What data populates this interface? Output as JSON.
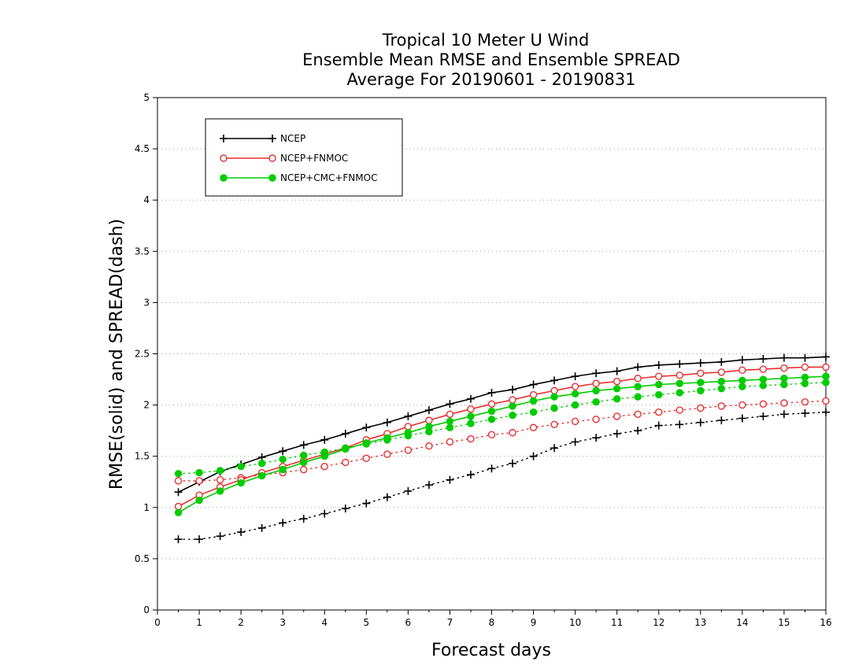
{
  "chart_data": {
    "type": "line",
    "title_lines": [
      "Tropical 10 Meter U Wind",
      "Ensemble Mean RMSE and Ensemble SPREAD",
      "Average For 20190601 - 20190831"
    ],
    "xlabel": "Forecast days",
    "ylabel": "RMSE(solid) and SPREAD(dash)",
    "xlim": [
      0,
      16
    ],
    "ylim": [
      0,
      5
    ],
    "xticks": [
      0,
      1,
      2,
      3,
      4,
      5,
      6,
      7,
      8,
      9,
      10,
      11,
      12,
      13,
      14,
      15,
      16
    ],
    "yticks": [
      0,
      0.5,
      1,
      1.5,
      2,
      2.5,
      3,
      3.5,
      4,
      4.5,
      5
    ],
    "grid": "horizontal-dotted",
    "legend_position": "top-left",
    "x": [
      0.5,
      1,
      1.5,
      2,
      2.5,
      3,
      3.5,
      4,
      4.5,
      5,
      5.5,
      6,
      6.5,
      7,
      7.5,
      8,
      8.5,
      9,
      9.5,
      10,
      10.5,
      11,
      11.5,
      12,
      12.5,
      13,
      13.5,
      14,
      14.5,
      15,
      15.5,
      16
    ],
    "series": [
      {
        "name": "NCEP",
        "color": "#000000",
        "marker": "plus",
        "rmse": [
          1.15,
          1.25,
          1.35,
          1.42,
          1.49,
          1.55,
          1.61,
          1.66,
          1.72,
          1.78,
          1.83,
          1.89,
          1.95,
          2.01,
          2.06,
          2.12,
          2.15,
          2.2,
          2.24,
          2.28,
          2.31,
          2.33,
          2.37,
          2.39,
          2.4,
          2.41,
          2.42,
          2.44,
          2.45,
          2.46,
          2.46,
          2.47
        ],
        "spread": [
          0.69,
          0.69,
          0.72,
          0.76,
          0.8,
          0.85,
          0.89,
          0.94,
          0.99,
          1.04,
          1.1,
          1.16,
          1.22,
          1.27,
          1.32,
          1.38,
          1.43,
          1.5,
          1.58,
          1.64,
          1.68,
          1.72,
          1.75,
          1.8,
          1.81,
          1.83,
          1.85,
          1.87,
          1.89,
          1.91,
          1.92,
          1.93
        ]
      },
      {
        "name": "NCEP+FNMOC",
        "color": "#e83030",
        "marker": "open-circle",
        "rmse": [
          1.01,
          1.12,
          1.2,
          1.27,
          1.34,
          1.4,
          1.46,
          1.52,
          1.58,
          1.66,
          1.72,
          1.79,
          1.85,
          1.91,
          1.96,
          2.01,
          2.05,
          2.1,
          2.14,
          2.18,
          2.21,
          2.23,
          2.26,
          2.28,
          2.29,
          2.31,
          2.32,
          2.34,
          2.35,
          2.36,
          2.37,
          2.37
        ],
        "spread": [
          1.26,
          1.26,
          1.27,
          1.29,
          1.32,
          1.34,
          1.37,
          1.4,
          1.44,
          1.48,
          1.52,
          1.56,
          1.6,
          1.64,
          1.67,
          1.71,
          1.73,
          1.78,
          1.81,
          1.84,
          1.86,
          1.89,
          1.91,
          1.93,
          1.95,
          1.97,
          1.99,
          2.0,
          2.01,
          2.02,
          2.03,
          2.04
        ]
      },
      {
        "name": "NCEP+CMC+FNMOC",
        "color": "#00cc00",
        "marker": "filled-circle",
        "rmse": [
          0.95,
          1.07,
          1.16,
          1.24,
          1.31,
          1.37,
          1.44,
          1.5,
          1.57,
          1.63,
          1.68,
          1.73,
          1.79,
          1.84,
          1.89,
          1.94,
          1.99,
          2.04,
          2.08,
          2.11,
          2.14,
          2.16,
          2.18,
          2.2,
          2.21,
          2.22,
          2.23,
          2.24,
          2.25,
          2.26,
          2.27,
          2.28
        ],
        "spread": [
          1.33,
          1.34,
          1.36,
          1.4,
          1.43,
          1.47,
          1.51,
          1.54,
          1.58,
          1.62,
          1.66,
          1.7,
          1.74,
          1.78,
          1.82,
          1.86,
          1.9,
          1.93,
          1.97,
          2.0,
          2.03,
          2.06,
          2.08,
          2.1,
          2.12,
          2.14,
          2.16,
          2.18,
          2.19,
          2.2,
          2.21,
          2.22
        ]
      }
    ]
  }
}
